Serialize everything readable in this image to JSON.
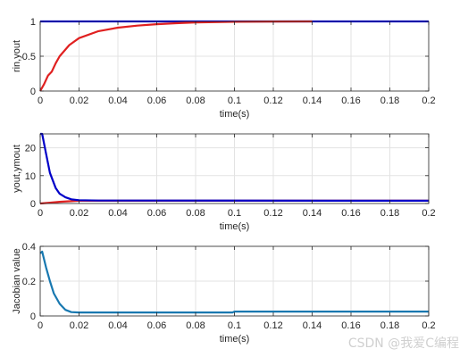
{
  "watermark": "CSDN @我爱C编程",
  "chart_data": [
    {
      "type": "line",
      "xlabel": "time(s)",
      "ylabel": "rin,yout",
      "xlim": [
        0,
        0.2
      ],
      "ylim": [
        0,
        1
      ],
      "xticks": [
        0,
        0.02,
        0.04,
        0.06,
        0.08,
        0.1,
        0.12,
        0.14,
        0.16,
        0.18,
        0.2
      ],
      "yticks": [
        0,
        0.5,
        1
      ],
      "grid": true,
      "series": [
        {
          "color": "#0000ff",
          "x": [
            0,
            0.2
          ],
          "y": [
            1,
            1
          ]
        },
        {
          "color": "#e02020",
          "x": [
            0,
            0.002,
            0.004,
            0.006,
            0.008,
            0.01,
            0.015,
            0.02,
            0.03,
            0.04,
            0.05,
            0.06,
            0.07,
            0.08,
            0.1,
            0.12,
            0.14
          ],
          "y": [
            0,
            0.1,
            0.22,
            0.28,
            0.4,
            0.5,
            0.66,
            0.76,
            0.86,
            0.91,
            0.94,
            0.96,
            0.975,
            0.985,
            0.995,
            0.999,
            1.0
          ]
        }
      ]
    },
    {
      "type": "line",
      "xlabel": "time(s)",
      "ylabel": "yout,ymout",
      "xlim": [
        0,
        0.2
      ],
      "ylim": [
        0,
        25
      ],
      "xticks": [
        0,
        0.02,
        0.04,
        0.06,
        0.08,
        0.1,
        0.12,
        0.14,
        0.16,
        0.18,
        0.2
      ],
      "yticks": [
        0,
        10,
        20
      ],
      "grid": true,
      "series": [
        {
          "color": "#e02020",
          "x": [
            0,
            0.005,
            0.01,
            0.015,
            0.02,
            0.2
          ],
          "y": [
            0,
            0.3,
            0.6,
            0.8,
            1.0,
            1.0
          ]
        },
        {
          "color": "#0000c8",
          "x": [
            0,
            0.001,
            0.003,
            0.005,
            0.008,
            0.01,
            0.013,
            0.016,
            0.02,
            0.03,
            0.2
          ],
          "y": [
            25,
            25,
            18,
            11,
            5.5,
            3.5,
            2.2,
            1.5,
            1.2,
            1.05,
            1.0
          ]
        }
      ]
    },
    {
      "type": "line",
      "xlabel": "time(s)",
      "ylabel": "Jacobian value",
      "xlim": [
        0,
        0.2
      ],
      "ylim": [
        0,
        0.4
      ],
      "xticks": [
        0,
        0.02,
        0.04,
        0.06,
        0.08,
        0.1,
        0.12,
        0.14,
        0.16,
        0.18,
        0.2
      ],
      "yticks": [
        0,
        0.2,
        0.4
      ],
      "grid": true,
      "series": [
        {
          "color": "#1878b0",
          "x": [
            0,
            0.001,
            0.003,
            0.005,
            0.007,
            0.01,
            0.013,
            0.016,
            0.02,
            0.06,
            0.099,
            0.1,
            0.2
          ],
          "y": [
            0.36,
            0.37,
            0.28,
            0.2,
            0.13,
            0.07,
            0.035,
            0.022,
            0.02,
            0.02,
            0.02,
            0.025,
            0.025
          ]
        }
      ]
    }
  ]
}
